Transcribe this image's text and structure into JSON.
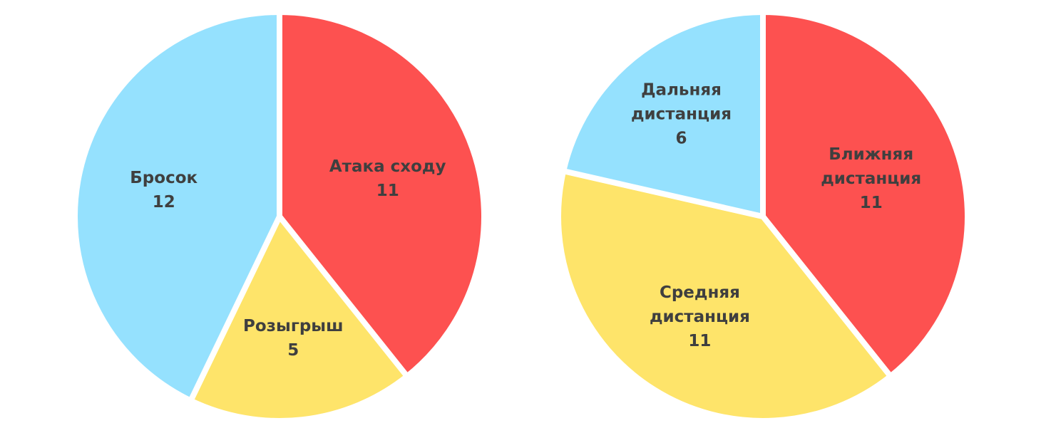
{
  "chart_data": [
    {
      "type": "pie",
      "slices": [
        {
          "label": "Атака сходу",
          "value": 11,
          "color": "#fd5150"
        },
        {
          "label": "Розыгрыш",
          "value": 5,
          "color": "#fee46a"
        },
        {
          "label": "Бросок",
          "value": 12,
          "color": "#95e1fe"
        }
      ],
      "start": "12 o'clock",
      "direction": "clockwise",
      "legend": "none",
      "data_labels": "inside slices (label, value)"
    },
    {
      "type": "pie",
      "slices": [
        {
          "label_lines": [
            "Ближняя",
            "дистанция"
          ],
          "value": 11,
          "color": "#fd5150"
        },
        {
          "label_lines": [
            "Средняя",
            "дистанция"
          ],
          "value": 11,
          "color": "#fee46a"
        },
        {
          "label_lines": [
            "Дальняя",
            "дистанция"
          ],
          "value": 6,
          "color": "#95e1fe"
        }
      ],
      "start": "12 o'clock",
      "direction": "clockwise",
      "legend": "none",
      "data_labels": "inside slices (label, value)"
    }
  ]
}
